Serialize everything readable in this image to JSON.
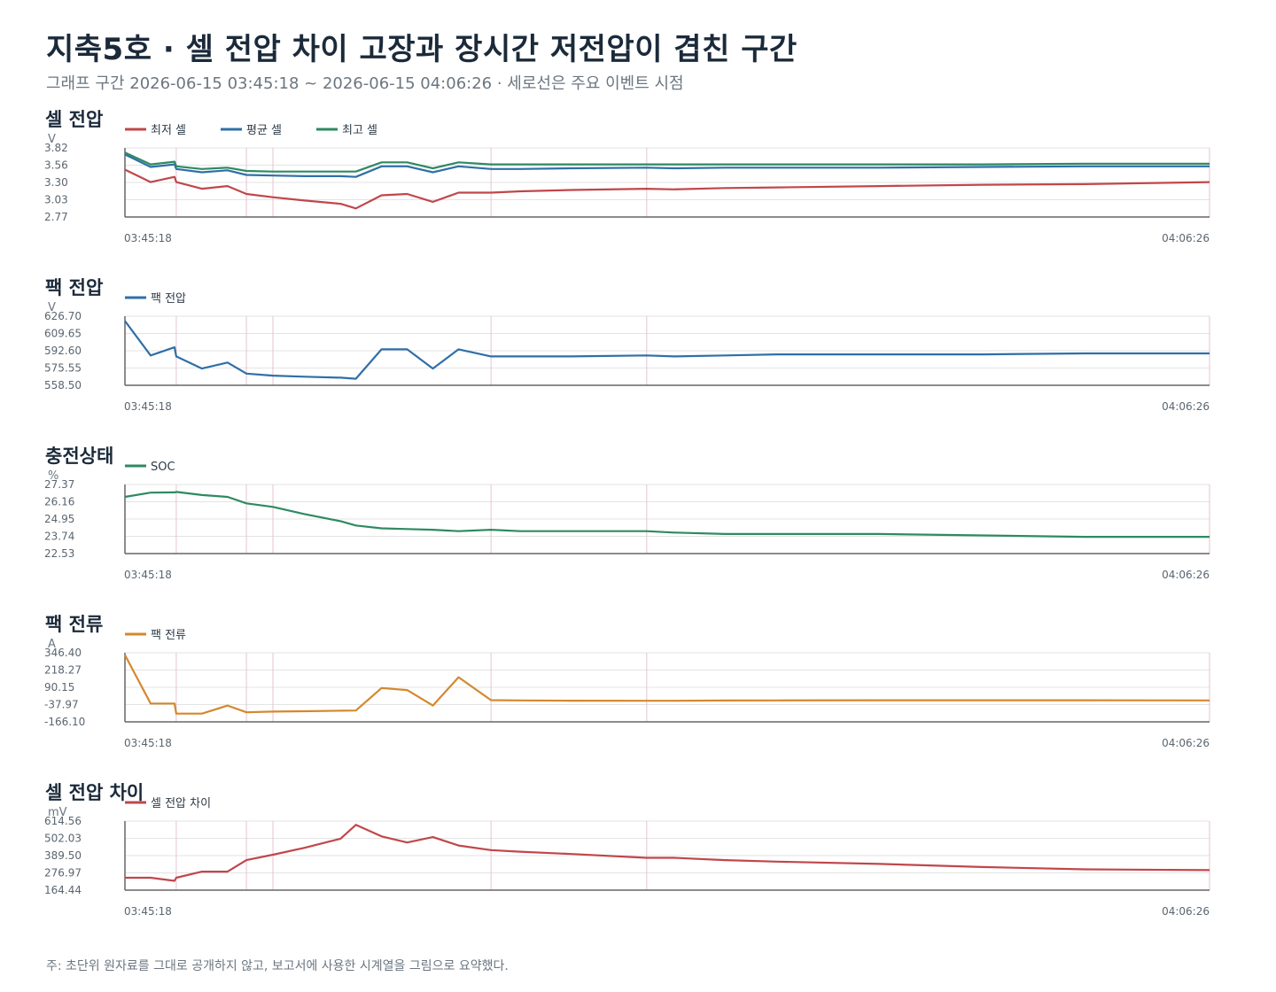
{
  "header": {
    "title": "지축5호 · 셀 전압 차이 고장과 장시간 저전압이 겹친 구간",
    "subtitle": "그래프 구간 2026-06-15 03:45:18 ~ 2026-06-15 04:06:26 · 세로선은 주요 이벤트 시점"
  },
  "footnote": "주: 초단위 원자료를 그대로 공개하지 않고, 보고서에 사용한 시계열을 그림으로 요약했다.",
  "colors": {
    "red": "#c0474a",
    "blue": "#2f6fa8",
    "green": "#2e8a61",
    "orange": "#d4882e",
    "event_line": "#e6c3d2",
    "grid": "#e3e3e3",
    "axis": "#666666"
  },
  "chart_data": [
    {
      "type": "line",
      "title": "셀 전압",
      "ylabel": "V",
      "yticks": [
        "3.82",
        "3.56",
        "3.30",
        "3.03",
        "2.77"
      ],
      "ylim": [
        2.77,
        3.82
      ],
      "xlim": [
        "03:45:18",
        "04:06:26"
      ],
      "xticks": [
        "03:45:18",
        "04:06:26"
      ],
      "event_times": [
        "03:46:18",
        "03:47:40",
        "03:48:11",
        "03:52:26",
        "03:55:28"
      ],
      "x": [
        "03:45:18",
        "03:45:48",
        "03:46:16",
        "03:46:18",
        "03:46:48",
        "03:47:18",
        "03:47:40",
        "03:48:11",
        "03:48:48",
        "03:49:30",
        "03:49:48",
        "03:50:18",
        "03:50:48",
        "03:51:18",
        "03:51:48",
        "03:52:26",
        "03:53:00",
        "03:54:00",
        "03:55:28",
        "03:56:00",
        "03:57:00",
        "03:58:00",
        "04:00:00",
        "04:02:00",
        "04:04:00",
        "04:06:26"
      ],
      "series": [
        {
          "name": "최저 셀",
          "color": "#c0474a",
          "values": [
            3.49,
            3.3,
            3.38,
            3.3,
            3.2,
            3.24,
            3.12,
            3.07,
            3.02,
            2.97,
            2.9,
            3.1,
            3.12,
            3.0,
            3.14,
            3.14,
            3.16,
            3.18,
            3.2,
            3.19,
            3.21,
            3.22,
            3.24,
            3.26,
            3.27,
            3.3
          ]
        },
        {
          "name": "평균 셀",
          "color": "#2f6fa8",
          "values": [
            3.72,
            3.53,
            3.57,
            3.5,
            3.45,
            3.48,
            3.41,
            3.4,
            3.39,
            3.39,
            3.38,
            3.54,
            3.54,
            3.45,
            3.54,
            3.5,
            3.5,
            3.51,
            3.52,
            3.51,
            3.52,
            3.52,
            3.52,
            3.53,
            3.54,
            3.54
          ]
        },
        {
          "name": "최고 셀",
          "color": "#2e8a61",
          "values": [
            3.75,
            3.57,
            3.61,
            3.54,
            3.5,
            3.52,
            3.47,
            3.46,
            3.46,
            3.46,
            3.46,
            3.6,
            3.6,
            3.51,
            3.6,
            3.57,
            3.57,
            3.57,
            3.57,
            3.57,
            3.57,
            3.57,
            3.57,
            3.57,
            3.58,
            3.58
          ]
        }
      ]
    },
    {
      "type": "line",
      "title": "팩 전압",
      "ylabel": "V",
      "yticks": [
        "626.70",
        "609.65",
        "592.60",
        "575.55",
        "558.50"
      ],
      "ylim": [
        558.5,
        626.7
      ],
      "xlim": [
        "03:45:18",
        "04:06:26"
      ],
      "xticks": [
        "03:45:18",
        "04:06:26"
      ],
      "event_times": [
        "03:46:18",
        "03:47:40",
        "03:48:11",
        "03:52:26",
        "03:55:28"
      ],
      "x": [
        "03:45:18",
        "03:45:48",
        "03:46:16",
        "03:46:18",
        "03:46:48",
        "03:47:18",
        "03:47:40",
        "03:48:11",
        "03:48:48",
        "03:49:30",
        "03:49:48",
        "03:50:18",
        "03:50:48",
        "03:51:18",
        "03:51:48",
        "03:52:26",
        "03:53:00",
        "03:54:00",
        "03:55:28",
        "03:56:00",
        "03:57:00",
        "03:58:00",
        "04:00:00",
        "04:02:00",
        "04:04:00",
        "04:06:26"
      ],
      "series": [
        {
          "name": "팩 전압",
          "color": "#2f6fa8",
          "values": [
            622,
            588,
            596,
            587,
            575,
            581,
            570,
            568,
            567,
            566,
            565,
            594,
            594,
            575,
            594,
            587,
            587,
            587,
            588,
            587,
            588,
            589,
            589,
            589,
            590,
            590
          ]
        }
      ]
    },
    {
      "type": "line",
      "title": "충전상태",
      "ylabel": "%",
      "yticks": [
        "27.37",
        "26.16",
        "24.95",
        "23.74",
        "22.53"
      ],
      "ylim": [
        22.53,
        27.37
      ],
      "xlim": [
        "03:45:18",
        "04:06:26"
      ],
      "xticks": [
        "03:45:18",
        "04:06:26"
      ],
      "event_times": [
        "03:46:18",
        "03:47:40",
        "03:48:11",
        "03:52:26",
        "03:55:28"
      ],
      "x": [
        "03:45:18",
        "03:45:48",
        "03:46:16",
        "03:46:18",
        "03:46:48",
        "03:47:18",
        "03:47:40",
        "03:48:11",
        "03:48:48",
        "03:49:30",
        "03:49:48",
        "03:50:18",
        "03:50:48",
        "03:51:18",
        "03:51:48",
        "03:52:26",
        "03:53:00",
        "03:54:00",
        "03:55:28",
        "03:56:00",
        "03:57:00",
        "03:58:00",
        "04:00:00",
        "04:02:00",
        "04:04:00",
        "04:06:26"
      ],
      "series": [
        {
          "name": "SOC",
          "color": "#2e8a61",
          "values": [
            26.5,
            26.8,
            26.82,
            26.85,
            26.63,
            26.5,
            26.05,
            25.8,
            25.3,
            24.8,
            24.5,
            24.3,
            24.25,
            24.2,
            24.1,
            24.2,
            24.1,
            24.1,
            24.1,
            24.0,
            23.9,
            23.9,
            23.9,
            23.8,
            23.7,
            23.7
          ]
        }
      ]
    },
    {
      "type": "line",
      "title": "팩 전류",
      "ylabel": "A",
      "yticks": [
        "346.40",
        "218.27",
        "90.15",
        "-37.97",
        "-166.10"
      ],
      "ylim": [
        -166.1,
        346.4
      ],
      "xlim": [
        "03:45:18",
        "04:06:26"
      ],
      "xticks": [
        "03:45:18",
        "04:06:26"
      ],
      "event_times": [
        "03:46:18",
        "03:47:40",
        "03:48:11",
        "03:52:26",
        "03:55:28"
      ],
      "x": [
        "03:45:18",
        "03:45:48",
        "03:46:16",
        "03:46:18",
        "03:46:48",
        "03:47:18",
        "03:47:40",
        "03:48:11",
        "03:48:48",
        "03:49:30",
        "03:49:48",
        "03:50:18",
        "03:50:48",
        "03:51:18",
        "03:51:48",
        "03:52:26",
        "03:53:00",
        "03:54:00",
        "03:55:28",
        "03:56:00",
        "03:57:00",
        "03:58:00",
        "04:00:00",
        "04:02:00",
        "04:04:00",
        "04:06:26"
      ],
      "series": [
        {
          "name": "팩 전류",
          "color": "#d4882e",
          "values": [
            330,
            -30,
            -30,
            -105,
            -105,
            -45,
            -95,
            -90,
            -87,
            -83,
            -82,
            85,
            70,
            -45,
            165,
            -5,
            -7,
            -9,
            -10,
            -10,
            -8,
            -7,
            -6,
            -6,
            -6,
            -7
          ]
        }
      ]
    },
    {
      "type": "line",
      "title": "셀 전압 차이",
      "ylabel": "mV",
      "yticks": [
        "614.56",
        "502.03",
        "389.50",
        "276.97",
        "164.44"
      ],
      "ylim": [
        164.44,
        614.56
      ],
      "xlim": [
        "03:45:18",
        "04:06:26"
      ],
      "xticks": [
        "03:45:18",
        "04:06:26"
      ],
      "event_times": [
        "03:46:18",
        "03:47:40",
        "03:48:11",
        "03:52:26",
        "03:55:28"
      ],
      "x": [
        "03:45:18",
        "03:45:48",
        "03:46:16",
        "03:46:18",
        "03:46:48",
        "03:47:18",
        "03:47:40",
        "03:48:11",
        "03:48:48",
        "03:49:30",
        "03:49:48",
        "03:50:18",
        "03:50:48",
        "03:51:18",
        "03:51:48",
        "03:52:26",
        "03:53:00",
        "03:54:00",
        "03:55:28",
        "03:56:00",
        "03:57:00",
        "03:58:00",
        "04:00:00",
        "04:02:00",
        "04:04:00",
        "04:06:26"
      ],
      "series": [
        {
          "name": "셀 전압 차이",
          "color": "#c0474a",
          "values": [
            245,
            245,
            225,
            245,
            285,
            285,
            360,
            395,
            440,
            500,
            590,
            515,
            475,
            510,
            455,
            425,
            415,
            400,
            375,
            375,
            360,
            350,
            335,
            315,
            300,
            295
          ]
        }
      ]
    }
  ]
}
